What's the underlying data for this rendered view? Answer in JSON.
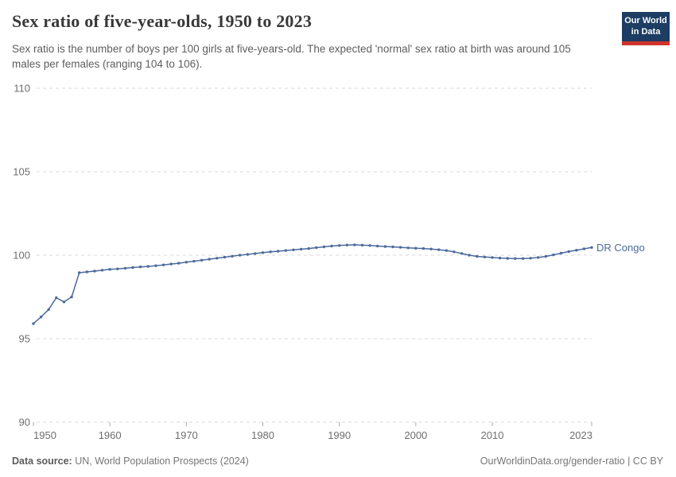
{
  "header": {
    "title": "Sex ratio of five-year-olds, 1950 to 2023",
    "subtitle": "Sex ratio is the number of boys per 100 girls at five-years-old. The expected 'normal' sex ratio at birth was around 105 males per females (ranging 104 to 106).",
    "logo": {
      "line1": "Our World",
      "line2": "in Data",
      "bg_color": "#1d3d63",
      "accent_color": "#cf342b"
    }
  },
  "chart_data": {
    "type": "line",
    "title": "Sex ratio of five-year-olds, 1950 to 2023",
    "xlabel": "",
    "ylabel": "",
    "xlim": [
      1950,
      2023
    ],
    "ylim": [
      90,
      110
    ],
    "x_ticks": [
      1950,
      1960,
      1970,
      1980,
      1990,
      2000,
      2010,
      2023
    ],
    "y_ticks": [
      90,
      95,
      100,
      105,
      110
    ],
    "grid": "horizontal-dashed",
    "legend_position": "end-of-line-label",
    "series": [
      {
        "name": "DR Congo",
        "color": "#4c6a9c",
        "years": [
          1950,
          1951,
          1952,
          1953,
          1954,
          1955,
          1956,
          1957,
          1958,
          1959,
          1960,
          1961,
          1962,
          1963,
          1964,
          1965,
          1966,
          1967,
          1968,
          1969,
          1970,
          1971,
          1972,
          1973,
          1974,
          1975,
          1976,
          1977,
          1978,
          1979,
          1980,
          1981,
          1982,
          1983,
          1984,
          1985,
          1986,
          1987,
          1988,
          1989,
          1990,
          1991,
          1992,
          1993,
          1994,
          1995,
          1996,
          1997,
          1998,
          1999,
          2000,
          2001,
          2002,
          2003,
          2004,
          2005,
          2006,
          2007,
          2008,
          2009,
          2010,
          2011,
          2012,
          2013,
          2014,
          2015,
          2016,
          2017,
          2018,
          2019,
          2020,
          2021,
          2022,
          2023
        ],
        "values": [
          95.9,
          96.3,
          96.75,
          97.45,
          97.2,
          97.5,
          98.95,
          99.0,
          99.05,
          99.1,
          99.15,
          99.18,
          99.22,
          99.26,
          99.3,
          99.33,
          99.37,
          99.42,
          99.47,
          99.52,
          99.58,
          99.64,
          99.7,
          99.76,
          99.82,
          99.88,
          99.94,
          100.0,
          100.05,
          100.1,
          100.15,
          100.2,
          100.24,
          100.28,
          100.32,
          100.36,
          100.4,
          100.45,
          100.5,
          100.55,
          100.58,
          100.61,
          100.62,
          100.6,
          100.58,
          100.55,
          100.52,
          100.5,
          100.47,
          100.44,
          100.42,
          100.4,
          100.37,
          100.33,
          100.28,
          100.2,
          100.1,
          100.0,
          99.93,
          99.89,
          99.86,
          99.83,
          99.81,
          99.8,
          99.8,
          99.82,
          99.86,
          99.93,
          100.02,
          100.12,
          100.22,
          100.3,
          100.38,
          100.46
        ]
      }
    ]
  },
  "footer": {
    "source_label": "Data source:",
    "source_text": " UN, World Population Prospects (2024)",
    "credit": "OurWorldinData.org/gender-ratio | CC BY"
  }
}
